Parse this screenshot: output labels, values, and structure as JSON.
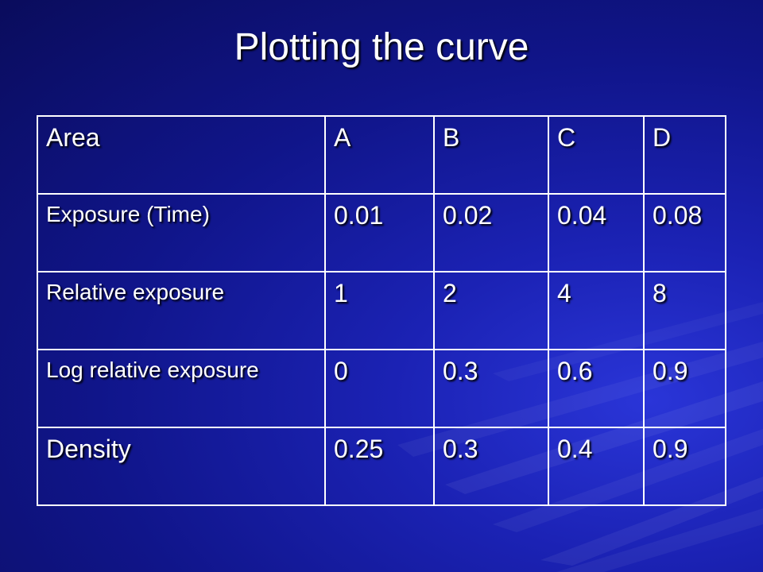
{
  "slide": {
    "title": "Plotting the curve"
  },
  "table": {
    "header": [
      "Area",
      "A",
      "B",
      "C",
      "D"
    ],
    "rows": [
      {
        "label": "Exposure (Time)",
        "values": [
          "0.01",
          "0.02",
          "0.04",
          "0.08"
        ]
      },
      {
        "label": "Relative exposure",
        "values": [
          "1",
          "2",
          "4",
          "8"
        ]
      },
      {
        "label": "Log relative exposure",
        "values": [
          "0",
          "0.3",
          "0.6",
          "0.9"
        ]
      },
      {
        "label": "Density",
        "values": [
          "0.25",
          "0.3",
          "0.4",
          "0.9"
        ]
      }
    ]
  },
  "colors": {
    "background": "#1b22b4",
    "text": "#ffffff",
    "grid": "#ffffff"
  }
}
